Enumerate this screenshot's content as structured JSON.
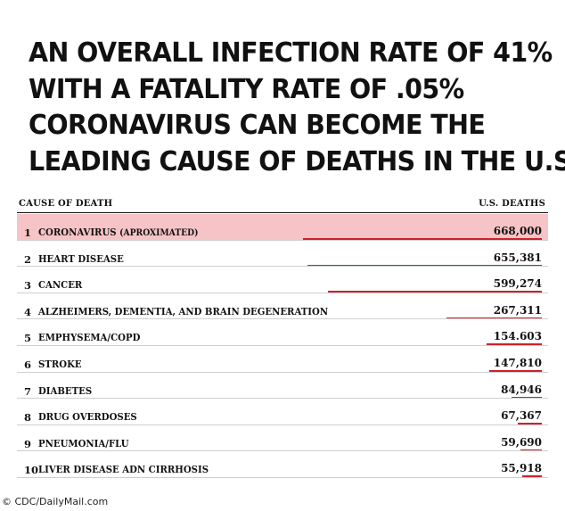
{
  "headline": [
    "AN OVERALL INFECTION RATE OF 41%",
    "WITH A FATALITY RATE OF .05%",
    "CORONAVIRUS CAN BECOME THE",
    "LEADING CAUSE OF DEATHS IN THE U.S."
  ],
  "credit": "© CDC/DailyMail.com",
  "colors": {
    "bar": "#d0202a",
    "highlight": "#f6c4c7"
  },
  "chart_data": {
    "type": "bar",
    "orientation": "horizontal",
    "column_headers": {
      "category": "CAUSE OF DEATH",
      "value": "U.S. DEATHS"
    },
    "rows": [
      {
        "rank": "1",
        "label": "CORONAVIRUS",
        "note": "(APROXIMATED)",
        "value": 668000,
        "display": "668,000",
        "highlight": true
      },
      {
        "rank": "2",
        "label": "HEART DISEASE",
        "note": "",
        "value": 655381,
        "display": "655,381"
      },
      {
        "rank": "3",
        "label": "CANCER",
        "note": "",
        "value": 599274,
        "display": "599,274"
      },
      {
        "rank": "4",
        "label": "ALZHEIMERS, DEMENTIA, AND BRAIN DEGENERATION",
        "note": "",
        "value": 267311,
        "display": "267,311"
      },
      {
        "rank": "5",
        "label": "EMPHYSEMA/COPD",
        "note": "",
        "value": 154603,
        "display": "154.603"
      },
      {
        "rank": "6",
        "label": "STROKE",
        "note": "",
        "value": 147810,
        "display": "147,810"
      },
      {
        "rank": "7",
        "label": "DIABETES",
        "note": "",
        "value": 84946,
        "display": "84,946"
      },
      {
        "rank": "8",
        "label": "DRUG OVERDOSES",
        "note": "",
        "value": 67367,
        "display": "67,367"
      },
      {
        "rank": "9",
        "label": "PNEUMONIA/FLU",
        "note": "",
        "value": 59690,
        "display": "59,690"
      },
      {
        "rank": "10",
        "label": "LIVER DISEASE ADN CIRRHOSIS",
        "note": "",
        "value": 55918,
        "display": "55,918"
      }
    ]
  }
}
